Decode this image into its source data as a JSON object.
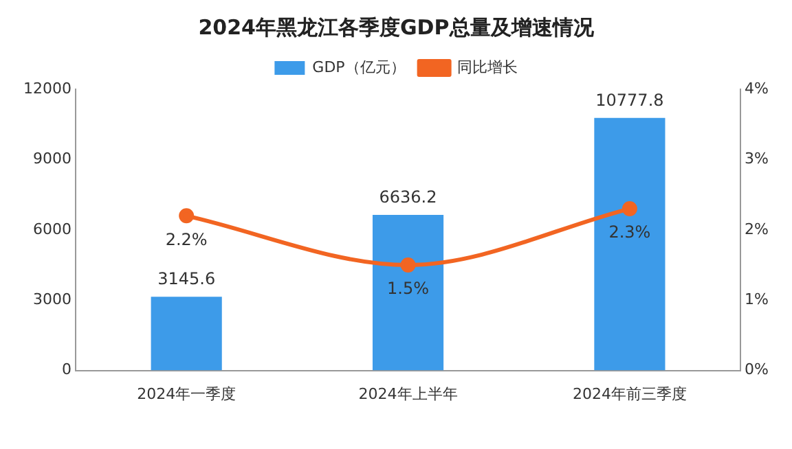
{
  "chart_data": {
    "type": "bar",
    "title": "2024年黑龙江各季度GDP总量及增速情况",
    "categories": [
      "2024年一季度",
      "2024年上半年",
      "2024年前三季度"
    ],
    "series": [
      {
        "name": "GDP（亿元）",
        "color": "#3d9be9",
        "values": [
          3145.6,
          6636.2,
          10777.8
        ]
      },
      {
        "name": "同比增长",
        "type": "line",
        "axis": "y2",
        "color": "#f26522",
        "values": [
          2.2,
          1.5,
          2.3
        ],
        "value_labels": [
          "2.2%",
          "1.5%",
          "2.3%"
        ]
      }
    ],
    "ylim": [
      0,
      12000
    ],
    "yticks": [
      0,
      3000,
      6000,
      9000,
      12000
    ],
    "y2lim": [
      0,
      4
    ],
    "y2ticks": [
      {
        "value": 0,
        "label": "0%"
      },
      {
        "value": 1,
        "label": "1%"
      },
      {
        "value": 2,
        "label": "2%"
      },
      {
        "value": 3,
        "label": "3%"
      },
      {
        "value": 4,
        "label": "4%"
      }
    ],
    "data_labels": true,
    "legend": "top",
    "marker": "circle",
    "grid": false
  }
}
